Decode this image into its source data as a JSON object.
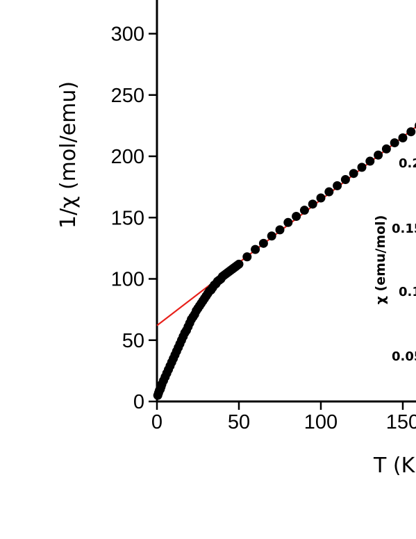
{
  "chart_data": [
    {
      "type": "scatter",
      "xlabel": "T (K",
      "ylabel": "1/χ (mol/emu)",
      "x_ticks": [
        0,
        50,
        100,
        150
      ],
      "y_ticks": [
        0,
        50,
        100,
        150,
        200,
        250,
        300
      ],
      "xlim": [
        0,
        158
      ],
      "ylim": [
        0,
        330
      ],
      "grid": false,
      "series": [
        {
          "marker": "filled-circle",
          "color": "#000000",
          "x": [
            0.5,
            1,
            1.5,
            2,
            2.5,
            3,
            4,
            5,
            6,
            7,
            8,
            9,
            10,
            11,
            12,
            13,
            14,
            15,
            16,
            17,
            18,
            19,
            20,
            21,
            22,
            23,
            24,
            25,
            26,
            27,
            28,
            29,
            30,
            31,
            32,
            33,
            34,
            35,
            36,
            37,
            38,
            39,
            40,
            41,
            42,
            43,
            44,
            45,
            46,
            47,
            48,
            49,
            50,
            55,
            60,
            65,
            70,
            75,
            80,
            85,
            90,
            95,
            100,
            105,
            110,
            115,
            120,
            125,
            130,
            135,
            140,
            145,
            150,
            155,
            160
          ],
          "y": [
            5,
            7,
            9,
            10,
            12,
            14,
            17,
            20,
            23,
            26,
            29,
            32,
            35,
            38,
            41,
            44,
            47,
            50,
            53,
            56,
            58,
            61,
            64,
            67,
            69,
            71,
            74,
            76,
            78,
            80,
            82,
            84,
            86,
            88,
            90,
            91,
            93,
            95,
            96,
            98,
            99,
            100,
            102,
            103,
            104,
            105,
            106,
            107,
            108,
            109,
            110,
            111,
            112,
            118,
            124,
            129,
            135,
            140,
            146,
            151,
            156,
            161,
            166,
            171,
            176,
            181,
            186,
            191,
            196,
            201,
            206,
            211,
            215,
            220,
            225
          ]
        },
        {
          "type": "line",
          "color": "#e8201a",
          "x": [
            0,
            160
          ],
          "y": [
            62,
            226
          ]
        }
      ]
    },
    {
      "type": "scatter",
      "ylabel": "χ (emu/mol)",
      "y_tick_labels": [
        "0.2",
        "0.15",
        "0.1",
        "0.05"
      ]
    }
  ]
}
